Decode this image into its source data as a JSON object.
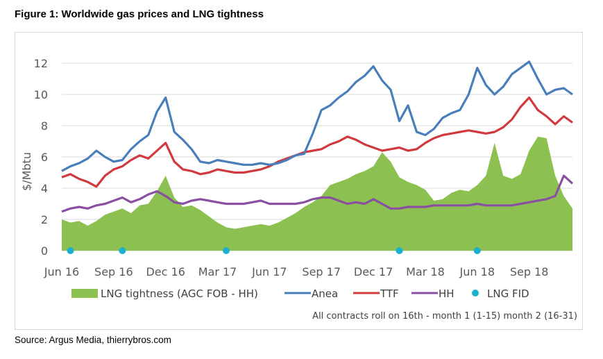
{
  "figure": {
    "title": "Figure 1: Worldwide gas prices and LNG tightness",
    "source": "Source: Argus Media, thierrybros.com",
    "note": "All contracts roll on 16th - month 1 (1-15) month 2 (16-31)"
  },
  "colors": {
    "anea": "#4a7ebb",
    "ttf": "#d0393e",
    "hh": "#8a4fa3",
    "lng_tightness": "#8cc152",
    "lng_fid": "#1cb0cf",
    "grid": "#d9d9d9",
    "axis_text": "#595959"
  },
  "chart_data": {
    "type": "line",
    "title": "Figure 1: Worldwide gas prices and LNG tightness",
    "xlabel": "",
    "ylabel": "$/Mbtu",
    "ylim": [
      0,
      12
    ],
    "yticks": [
      0,
      2,
      4,
      6,
      8,
      10,
      12
    ],
    "grid": true,
    "legend_position": "bottom",
    "x_start": "Jun 16",
    "x_step": "half-month",
    "xtick_labels": [
      "Jun 16",
      "Sep 16",
      "Dec 16",
      "Mar 17",
      "Jun 17",
      "Sep 17",
      "Dec 17",
      "Mar 18",
      "Jun 18",
      "Sep 18"
    ],
    "xtick_index": [
      0,
      6,
      12,
      18,
      24,
      30,
      36,
      42,
      48,
      54
    ],
    "n_points": 60,
    "series": [
      {
        "name": "LNG tightness (AGC FOB - HH)",
        "type": "area",
        "values": [
          2.0,
          1.8,
          1.9,
          1.6,
          1.9,
          2.3,
          2.5,
          2.7,
          2.4,
          2.9,
          3.0,
          3.8,
          4.8,
          3.4,
          2.8,
          2.9,
          2.6,
          2.2,
          1.8,
          1.5,
          1.4,
          1.5,
          1.6,
          1.7,
          1.6,
          1.8,
          2.1,
          2.4,
          2.8,
          3.1,
          3.5,
          4.2,
          4.4,
          4.6,
          4.9,
          5.1,
          5.4,
          6.3,
          5.7,
          4.7,
          4.4,
          4.2,
          3.9,
          3.2,
          3.3,
          3.7,
          3.9,
          3.8,
          4.2,
          4.8,
          6.9,
          4.8,
          4.6,
          4.9,
          6.4,
          7.3,
          7.2,
          4.8,
          3.5,
          2.7
        ]
      },
      {
        "name": "Anea",
        "type": "line",
        "values": [
          5.1,
          5.4,
          5.6,
          5.9,
          6.4,
          6.0,
          5.7,
          5.8,
          6.5,
          7.0,
          7.4,
          8.9,
          9.8,
          7.6,
          7.1,
          6.5,
          5.7,
          5.6,
          5.8,
          5.7,
          5.6,
          5.5,
          5.5,
          5.6,
          5.5,
          5.6,
          5.8,
          6.1,
          6.2,
          7.5,
          9.0,
          9.3,
          9.8,
          10.2,
          10.8,
          11.2,
          11.8,
          10.9,
          10.3,
          8.3,
          9.3,
          7.6,
          7.4,
          7.8,
          8.5,
          8.8,
          9.0,
          10.0,
          11.7,
          10.6,
          10.0,
          10.5,
          11.3,
          11.7,
          12.1,
          11.0,
          10.0,
          10.3,
          10.4,
          10.0
        ]
      },
      {
        "name": "TTF",
        "type": "line",
        "values": [
          4.7,
          4.9,
          4.6,
          4.4,
          4.1,
          4.8,
          5.2,
          5.4,
          5.8,
          6.1,
          5.9,
          6.4,
          6.9,
          5.7,
          5.2,
          5.1,
          4.9,
          5.0,
          5.2,
          5.1,
          5.0,
          5.0,
          5.1,
          5.2,
          5.4,
          5.7,
          5.9,
          6.1,
          6.3,
          6.4,
          6.5,
          6.8,
          7.0,
          7.3,
          7.1,
          6.8,
          6.6,
          6.4,
          6.5,
          6.6,
          6.4,
          6.5,
          6.9,
          7.2,
          7.4,
          7.5,
          7.6,
          7.7,
          7.6,
          7.5,
          7.6,
          7.9,
          8.4,
          9.2,
          9.8,
          9.0,
          8.6,
          8.1,
          8.6,
          8.2
        ]
      },
      {
        "name": "HH",
        "type": "line",
        "values": [
          2.5,
          2.7,
          2.8,
          2.7,
          2.9,
          3.0,
          3.2,
          3.4,
          3.1,
          3.3,
          3.6,
          3.8,
          3.5,
          3.1,
          3.0,
          3.2,
          3.3,
          3.2,
          3.1,
          3.0,
          3.0,
          3.0,
          3.1,
          3.2,
          3.0,
          3.0,
          3.0,
          3.0,
          3.1,
          3.3,
          3.4,
          3.4,
          3.2,
          3.0,
          3.1,
          3.0,
          3.3,
          3.0,
          2.7,
          2.7,
          2.8,
          2.8,
          2.8,
          2.9,
          2.9,
          2.9,
          2.9,
          2.9,
          3.0,
          2.9,
          2.9,
          2.9,
          2.9,
          3.0,
          3.1,
          3.2,
          3.3,
          3.5,
          4.8,
          4.3
        ]
      },
      {
        "name": "LNG FID",
        "type": "scatter",
        "x_index": [
          1,
          7,
          19,
          39,
          48
        ],
        "values": [
          0,
          0,
          0,
          0,
          0
        ]
      }
    ]
  }
}
